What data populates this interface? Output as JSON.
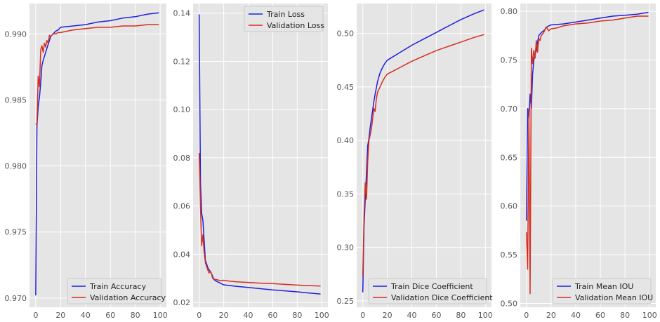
{
  "chart_data": [
    {
      "type": "line",
      "xlim": [
        -5,
        105
      ],
      "ylim": [
        0.9693,
        0.9923
      ],
      "xticks": [
        0,
        20,
        40,
        60,
        80,
        100
      ],
      "yticks": [
        0.97,
        0.975,
        0.98,
        0.985,
        0.99
      ],
      "ytick_labels": [
        "0.970",
        "0.975",
        "0.980",
        "0.985",
        "0.990"
      ],
      "grid": true,
      "legend_placement": "lower-right",
      "series": [
        {
          "name": "Train Accuracy",
          "color": "#1f1fde",
          "x": [
            0,
            1,
            2,
            3,
            4,
            5,
            6,
            7,
            8,
            9,
            10,
            12,
            14,
            16,
            18,
            20,
            30,
            40,
            50,
            60,
            70,
            80,
            90,
            99
          ],
          "y": [
            0.9702,
            0.983,
            0.9845,
            0.9852,
            0.9863,
            0.9876,
            0.988,
            0.9883,
            0.9886,
            0.9889,
            0.9892,
            0.9898,
            0.99,
            0.9902,
            0.9903,
            0.9905,
            0.9906,
            0.9907,
            0.9909,
            0.991,
            0.9912,
            0.9913,
            0.9915,
            0.9916
          ]
        },
        {
          "name": "Validation Accuracy",
          "color": "#d62d20",
          "x": [
            0,
            1,
            2,
            3,
            4,
            5,
            6,
            7,
            8,
            9,
            10,
            11,
            12,
            14,
            16,
            18,
            20,
            25,
            30,
            40,
            50,
            60,
            70,
            80,
            90,
            99
          ],
          "y": [
            0.9832,
            0.9831,
            0.9868,
            0.986,
            0.9888,
            0.9891,
            0.9886,
            0.9893,
            0.989,
            0.9895,
            0.9893,
            0.9899,
            0.9898,
            0.99,
            0.99,
            0.9901,
            0.9901,
            0.9902,
            0.9903,
            0.9904,
            0.9905,
            0.9905,
            0.9906,
            0.9906,
            0.9907,
            0.9907
          ]
        }
      ]
    },
    {
      "type": "line",
      "xlim": [
        -5,
        105
      ],
      "ylim": [
        0.018,
        0.144
      ],
      "xticks": [
        0,
        20,
        40,
        60,
        80,
        100
      ],
      "yticks": [
        0.02,
        0.04,
        0.06,
        0.08,
        0.1,
        0.12,
        0.14
      ],
      "ytick_labels": [
        "0.02",
        "0.04",
        "0.06",
        "0.08",
        "0.10",
        "0.12",
        "0.14"
      ],
      "grid": true,
      "legend_placement": "upper-right",
      "series": [
        {
          "name": "Train Loss",
          "color": "#1f1fde",
          "x": [
            0,
            1,
            2,
            3,
            4,
            5,
            6,
            7,
            8,
            9,
            10,
            12,
            14,
            16,
            18,
            20,
            30,
            40,
            50,
            60,
            70,
            80,
            90,
            99
          ],
          "y": [
            0.1395,
            0.07,
            0.057,
            0.054,
            0.046,
            0.0375,
            0.036,
            0.0345,
            0.0335,
            0.033,
            0.032,
            0.0295,
            0.0288,
            0.0283,
            0.0278,
            0.0273,
            0.0267,
            0.0262,
            0.0257,
            0.0252,
            0.0248,
            0.0244,
            0.0239,
            0.0235
          ]
        },
        {
          "name": "Validation Loss",
          "color": "#d62d20",
          "x": [
            0,
            1,
            2,
            3,
            4,
            5,
            6,
            7,
            8,
            9,
            10,
            11,
            12,
            14,
            16,
            18,
            20,
            25,
            30,
            40,
            50,
            60,
            70,
            80,
            90,
            99
          ],
          "y": [
            0.082,
            0.06,
            0.0435,
            0.048,
            0.041,
            0.0365,
            0.035,
            0.0335,
            0.0322,
            0.033,
            0.0318,
            0.03,
            0.0297,
            0.0295,
            0.0292,
            0.029,
            0.0292,
            0.0288,
            0.0286,
            0.0283,
            0.028,
            0.0278,
            0.0275,
            0.0272,
            0.027,
            0.0268
          ]
        }
      ]
    },
    {
      "type": "line",
      "xlim": [
        -5,
        105
      ],
      "ylim": [
        0.244,
        0.528
      ],
      "xticks": [
        0,
        20,
        40,
        60,
        80,
        100
      ],
      "yticks": [
        0.25,
        0.3,
        0.35,
        0.4,
        0.45,
        0.5
      ],
      "ytick_labels": [
        "0.25",
        "0.30",
        "0.35",
        "0.40",
        "0.45",
        "0.50"
      ],
      "grid": true,
      "legend_placement": "lower-right",
      "series": [
        {
          "name": "Train Dice Coefficient",
          "color": "#1f1fde",
          "x": [
            0,
            1,
            2,
            3,
            4,
            5,
            6,
            7,
            8,
            9,
            10,
            12,
            14,
            16,
            18,
            20,
            30,
            40,
            50,
            60,
            70,
            80,
            90,
            99
          ],
          "y": [
            0.258,
            0.32,
            0.345,
            0.37,
            0.395,
            0.402,
            0.412,
            0.42,
            0.428,
            0.436,
            0.443,
            0.455,
            0.463,
            0.468,
            0.472,
            0.475,
            0.482,
            0.489,
            0.495,
            0.501,
            0.507,
            0.513,
            0.518,
            0.522
          ]
        },
        {
          "name": "Validation Dice Coefficient",
          "color": "#d62d20",
          "x": [
            0,
            1,
            2,
            3,
            4,
            5,
            6,
            7,
            8,
            9,
            10,
            11,
            12,
            14,
            16,
            18,
            20,
            25,
            30,
            40,
            50,
            60,
            70,
            80,
            90,
            99
          ],
          "y": [
            0.273,
            0.33,
            0.36,
            0.345,
            0.38,
            0.4,
            0.405,
            0.41,
            0.42,
            0.43,
            0.427,
            0.438,
            0.445,
            0.45,
            0.455,
            0.459,
            0.462,
            0.465,
            0.468,
            0.474,
            0.479,
            0.484,
            0.488,
            0.492,
            0.496,
            0.499
          ]
        }
      ]
    },
    {
      "type": "line",
      "xlim": [
        -5,
        105
      ],
      "ylim": [
        0.496,
        0.808
      ],
      "xticks": [
        0,
        20,
        40,
        60,
        80,
        100
      ],
      "yticks": [
        0.5,
        0.55,
        0.6,
        0.65,
        0.7,
        0.75,
        0.8
      ],
      "ytick_labels": [
        "0.50",
        "0.55",
        "0.60",
        "0.65",
        "0.70",
        "0.75",
        "0.80"
      ],
      "grid": true,
      "legend_placement": "lower-right",
      "series": [
        {
          "name": "Train Mean IOU",
          "color": "#1f1fde",
          "x": [
            0,
            1,
            2,
            3,
            4,
            5,
            6,
            7,
            8,
            9,
            10,
            12,
            14,
            16,
            18,
            20,
            30,
            40,
            50,
            60,
            70,
            80,
            90,
            99
          ],
          "y": [
            0.585,
            0.7,
            0.69,
            0.715,
            0.7,
            0.735,
            0.75,
            0.755,
            0.76,
            0.768,
            0.775,
            0.778,
            0.78,
            0.783,
            0.785,
            0.786,
            0.787,
            0.789,
            0.791,
            0.793,
            0.795,
            0.796,
            0.797,
            0.799
          ]
        },
        {
          "name": "Validation Mean IOU",
          "color": "#d62d20",
          "x": [
            0,
            1,
            2,
            3,
            4,
            5,
            6,
            7,
            8,
            9,
            10,
            11,
            12,
            14,
            16,
            18,
            20,
            25,
            30,
            40,
            50,
            60,
            70,
            80,
            90,
            99
          ],
          "y": [
            0.573,
            0.535,
            0.7,
            0.51,
            0.762,
            0.746,
            0.76,
            0.752,
            0.77,
            0.758,
            0.772,
            0.77,
            0.775,
            0.778,
            0.784,
            0.78,
            0.782,
            0.783,
            0.785,
            0.787,
            0.788,
            0.79,
            0.791,
            0.793,
            0.795,
            0.795
          ]
        }
      ]
    }
  ]
}
